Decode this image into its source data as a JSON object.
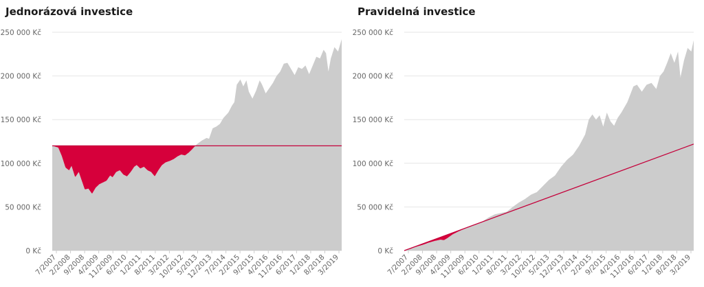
{
  "colors": {
    "area": "#cccccc",
    "loss": "#d6003b",
    "line": "#c4003a",
    "grid": "#e6e6e6",
    "axis_text": "#666666"
  },
  "chart_data": [
    {
      "type": "area",
      "title": "Jednorázová investice",
      "ylim": [
        0,
        250000
      ],
      "yticks": [
        0,
        50000,
        100000,
        150000,
        200000,
        250000
      ],
      "ytick_labels": [
        "0 Kč",
        "50 000 Kč",
        "100 000 Kč",
        "150 000 Kč",
        "200 000 Kč",
        "250 000 Kč"
      ],
      "xlim": [
        2007.5,
        2019.5
      ],
      "xticks": [
        "7/2007",
        "2/2008",
        "9/2008",
        "4/2009",
        "11/2009",
        "6/2010",
        "1/2011",
        "8/2011",
        "3/2012",
        "10/2012",
        "5/2013",
        "12/2013",
        "7/2014",
        "2/2015",
        "9/2015",
        "4/2016",
        "11/2016",
        "6/2017",
        "1/2018",
        "8/2018",
        "3/2019"
      ],
      "invested": [
        [
          2007.5,
          120000
        ],
        [
          2019.5,
          120000
        ]
      ],
      "series": [
        {
          "values": [
            [
              2007.5,
              120000
            ],
            [
              2007.75,
              118000
            ],
            [
              2007.9,
              108000
            ],
            [
              2008.05,
              95000
            ],
            [
              2008.2,
              92000
            ],
            [
              2008.3,
              97000
            ],
            [
              2008.45,
              84000
            ],
            [
              2008.6,
              90000
            ],
            [
              2008.75,
              78000
            ],
            [
              2008.85,
              70000
            ],
            [
              2009.0,
              71000
            ],
            [
              2009.15,
              65000
            ],
            [
              2009.3,
              72000
            ],
            [
              2009.45,
              76000
            ],
            [
              2009.6,
              78000
            ],
            [
              2009.75,
              80000
            ],
            [
              2009.9,
              86000
            ],
            [
              2010.0,
              84000
            ],
            [
              2010.15,
              90000
            ],
            [
              2010.3,
              92000
            ],
            [
              2010.45,
              87000
            ],
            [
              2010.6,
              85000
            ],
            [
              2010.75,
              90000
            ],
            [
              2010.9,
              96000
            ],
            [
              2011.0,
              98000
            ],
            [
              2011.15,
              94000
            ],
            [
              2011.3,
              96000
            ],
            [
              2011.45,
              92000
            ],
            [
              2011.6,
              90000
            ],
            [
              2011.75,
              85000
            ],
            [
              2011.9,
              92000
            ],
            [
              2012.05,
              98000
            ],
            [
              2012.2,
              101000
            ],
            [
              2012.4,
              103000
            ],
            [
              2012.55,
              105000
            ],
            [
              2012.7,
              108000
            ],
            [
              2012.85,
              110000
            ],
            [
              2013.0,
              109000
            ],
            [
              2013.15,
              112000
            ],
            [
              2013.3,
              116000
            ],
            [
              2013.5,
              122000
            ],
            [
              2013.7,
              126000
            ],
            [
              2013.9,
              129000
            ],
            [
              2014.0,
              128000
            ],
            [
              2014.15,
              140000
            ],
            [
              2014.3,
              142000
            ],
            [
              2014.45,
              145000
            ],
            [
              2014.6,
              152000
            ],
            [
              2014.8,
              158000
            ],
            [
              2014.95,
              166000
            ],
            [
              2015.05,
              170000
            ],
            [
              2015.15,
              190000
            ],
            [
              2015.3,
              196000
            ],
            [
              2015.42,
              188000
            ],
            [
              2015.55,
              195000
            ],
            [
              2015.65,
              182000
            ],
            [
              2015.8,
              174000
            ],
            [
              2015.95,
              183000
            ],
            [
              2016.1,
              195000
            ],
            [
              2016.2,
              190000
            ],
            [
              2016.35,
              180000
            ],
            [
              2016.5,
              186000
            ],
            [
              2016.65,
              192000
            ],
            [
              2016.8,
              200000
            ],
            [
              2016.95,
              205000
            ],
            [
              2017.1,
              214000
            ],
            [
              2017.25,
              215000
            ],
            [
              2017.4,
              208000
            ],
            [
              2017.55,
              201000
            ],
            [
              2017.7,
              210000
            ],
            [
              2017.85,
              208000
            ],
            [
              2018.0,
              212000
            ],
            [
              2018.15,
              202000
            ],
            [
              2018.3,
              212000
            ],
            [
              2018.45,
              222000
            ],
            [
              2018.6,
              220000
            ],
            [
              2018.75,
              230000
            ],
            [
              2018.85,
              226000
            ],
            [
              2018.95,
              205000
            ],
            [
              2019.05,
              220000
            ],
            [
              2019.2,
              233000
            ],
            [
              2019.35,
              228000
            ],
            [
              2019.5,
              242000
            ]
          ]
        }
      ]
    },
    {
      "type": "area",
      "title": "Pravidelná investice",
      "ylim": [
        0,
        250000
      ],
      "yticks": [
        0,
        50000,
        100000,
        150000,
        200000,
        250000
      ],
      "ytick_labels": [
        "0 Kč",
        "50 000 Kč",
        "100 000 Kč",
        "150 000 Kč",
        "200 000 Kč",
        "250 000 Kč"
      ],
      "xlim": [
        2007.5,
        2019.5
      ],
      "xticks": [
        "7/2007",
        "2/2008",
        "9/2008",
        "4/2009",
        "11/2009",
        "6/2010",
        "1/2011",
        "8/2011",
        "3/2012",
        "10/2012",
        "5/2013",
        "12/2013",
        "7/2014",
        "2/2015",
        "9/2015",
        "4/2016",
        "11/2016",
        "6/2017",
        "1/2018",
        "8/2018",
        "3/2019"
      ],
      "invested": [
        [
          2007.5,
          0
        ],
        [
          2019.5,
          122000
        ]
      ],
      "series": [
        {
          "values": [
            [
              2007.5,
              0
            ],
            [
              2007.75,
              2000
            ],
            [
              2008.0,
              4500
            ],
            [
              2008.25,
              6500
            ],
            [
              2008.5,
              9000
            ],
            [
              2008.75,
              11000
            ],
            [
              2009.0,
              12500
            ],
            [
              2009.15,
              12000
            ],
            [
              2009.3,
              14500
            ],
            [
              2009.5,
              18500
            ],
            [
              2009.75,
              22000
            ],
            [
              2010.0,
              25000
            ],
            [
              2010.25,
              28500
            ],
            [
              2010.5,
              31000
            ],
            [
              2010.75,
              33500
            ],
            [
              2011.0,
              38000
            ],
            [
              2011.25,
              41500
            ],
            [
              2011.5,
              43000
            ],
            [
              2011.75,
              44500
            ],
            [
              2012.0,
              50000
            ],
            [
              2012.25,
              55000
            ],
            [
              2012.5,
              59000
            ],
            [
              2012.75,
              64000
            ],
            [
              2013.0,
              67000
            ],
            [
              2013.25,
              74000
            ],
            [
              2013.5,
              81000
            ],
            [
              2013.75,
              86000
            ],
            [
              2014.0,
              96000
            ],
            [
              2014.25,
              104000
            ],
            [
              2014.5,
              110000
            ],
            [
              2014.75,
              120000
            ],
            [
              2015.0,
              133000
            ],
            [
              2015.15,
              150000
            ],
            [
              2015.3,
              156000
            ],
            [
              2015.45,
              150000
            ],
            [
              2015.6,
              155000
            ],
            [
              2015.75,
              142000
            ],
            [
              2015.9,
              158000
            ],
            [
              2016.05,
              148000
            ],
            [
              2016.2,
              143000
            ],
            [
              2016.35,
              152000
            ],
            [
              2016.5,
              158000
            ],
            [
              2016.75,
              170000
            ],
            [
              2017.0,
              188000
            ],
            [
              2017.15,
              190000
            ],
            [
              2017.35,
              182000
            ],
            [
              2017.55,
              190000
            ],
            [
              2017.75,
              192000
            ],
            [
              2017.95,
              185000
            ],
            [
              2018.1,
              200000
            ],
            [
              2018.25,
              205000
            ],
            [
              2018.4,
              215000
            ],
            [
              2018.55,
              226000
            ],
            [
              2018.7,
              215000
            ],
            [
              2018.85,
              228000
            ],
            [
              2018.95,
              198000
            ],
            [
              2019.1,
              218000
            ],
            [
              2019.25,
              232000
            ],
            [
              2019.4,
              228000
            ],
            [
              2019.5,
              241000
            ]
          ]
        }
      ]
    }
  ]
}
